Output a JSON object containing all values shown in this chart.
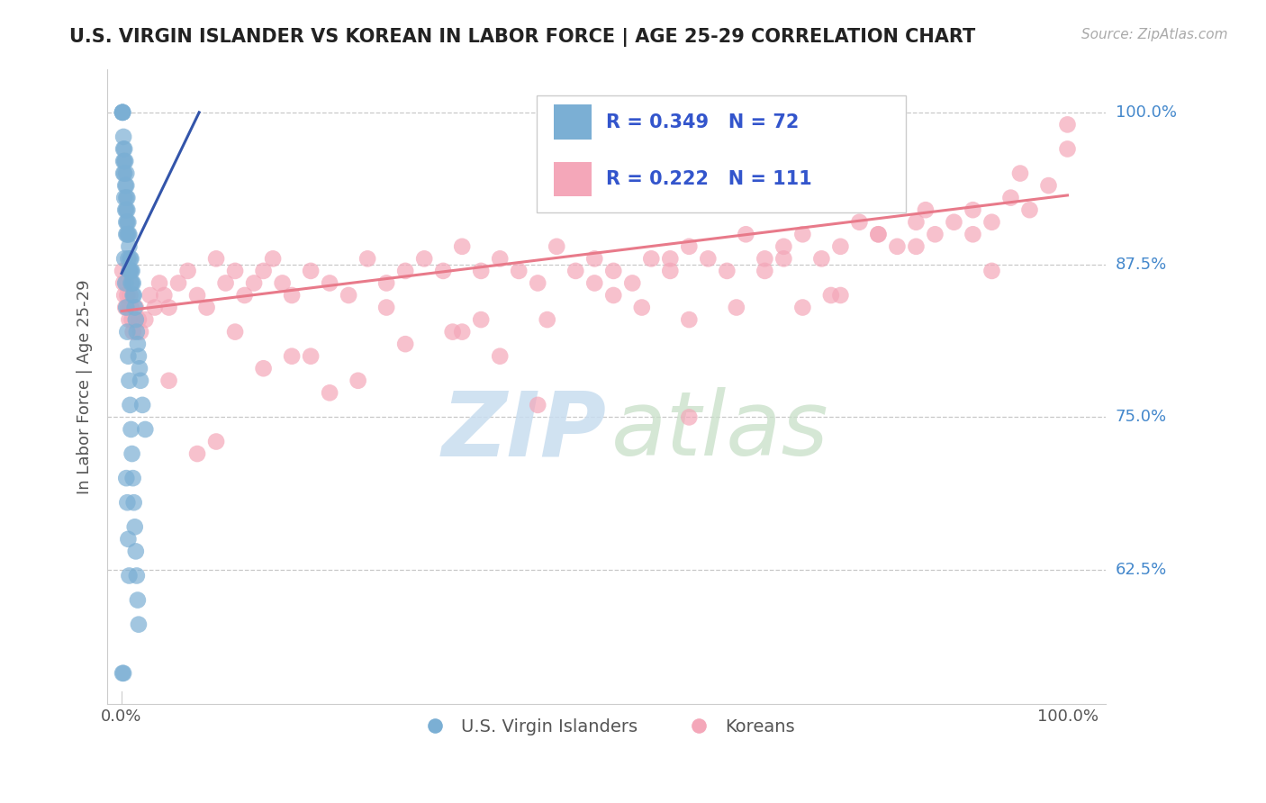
{
  "title": "U.S. VIRGIN ISLANDER VS KOREAN IN LABOR FORCE | AGE 25-29 CORRELATION CHART",
  "source": "Source: ZipAtlas.com",
  "ylabel": "In Labor Force | Age 25-29",
  "blue_color": "#7bafd4",
  "pink_color": "#f4a7b9",
  "trend_blue": "#3355aa",
  "trend_pink": "#e87a8a",
  "legend_text1": "R = 0.349   N = 72",
  "legend_text2": "R = 0.222   N = 111",
  "watermark_zip": "ZIP",
  "watermark_atlas": "atlas",
  "blue_x": [
    0.001,
    0.001,
    0.001,
    0.001,
    0.002,
    0.002,
    0.002,
    0.002,
    0.003,
    0.003,
    0.003,
    0.003,
    0.004,
    0.004,
    0.004,
    0.005,
    0.005,
    0.005,
    0.005,
    0.005,
    0.005,
    0.006,
    0.006,
    0.006,
    0.006,
    0.007,
    0.007,
    0.007,
    0.008,
    0.008,
    0.008,
    0.009,
    0.009,
    0.01,
    0.01,
    0.01,
    0.011,
    0.011,
    0.012,
    0.012,
    0.013,
    0.014,
    0.015,
    0.016,
    0.017,
    0.018,
    0.019,
    0.02,
    0.022,
    0.025,
    0.003,
    0.004,
    0.005,
    0.006,
    0.007,
    0.008,
    0.009,
    0.01,
    0.011,
    0.012,
    0.013,
    0.014,
    0.015,
    0.016,
    0.017,
    0.018,
    0.005,
    0.006,
    0.007,
    0.008,
    0.001,
    0.002
  ],
  "blue_y": [
    1.0,
    1.0,
    1.0,
    1.0,
    0.98,
    0.97,
    0.96,
    0.95,
    0.97,
    0.96,
    0.95,
    0.93,
    0.96,
    0.94,
    0.92,
    0.95,
    0.94,
    0.93,
    0.92,
    0.91,
    0.9,
    0.93,
    0.92,
    0.91,
    0.9,
    0.91,
    0.9,
    0.88,
    0.9,
    0.89,
    0.87,
    0.88,
    0.87,
    0.88,
    0.87,
    0.86,
    0.87,
    0.86,
    0.86,
    0.85,
    0.85,
    0.84,
    0.83,
    0.82,
    0.81,
    0.8,
    0.79,
    0.78,
    0.76,
    0.74,
    0.88,
    0.86,
    0.84,
    0.82,
    0.8,
    0.78,
    0.76,
    0.74,
    0.72,
    0.7,
    0.68,
    0.66,
    0.64,
    0.62,
    0.6,
    0.58,
    0.7,
    0.68,
    0.65,
    0.62,
    0.54,
    0.54
  ],
  "pink_x": [
    0.001,
    0.002,
    0.003,
    0.004,
    0.005,
    0.006,
    0.007,
    0.008,
    0.009,
    0.01,
    0.011,
    0.012,
    0.015,
    0.018,
    0.02,
    0.025,
    0.03,
    0.035,
    0.04,
    0.045,
    0.05,
    0.06,
    0.07,
    0.08,
    0.09,
    0.1,
    0.11,
    0.12,
    0.13,
    0.14,
    0.15,
    0.16,
    0.17,
    0.18,
    0.2,
    0.22,
    0.24,
    0.26,
    0.28,
    0.3,
    0.32,
    0.34,
    0.36,
    0.38,
    0.4,
    0.42,
    0.44,
    0.46,
    0.48,
    0.5,
    0.52,
    0.54,
    0.56,
    0.58,
    0.6,
    0.62,
    0.64,
    0.66,
    0.68,
    0.7,
    0.72,
    0.74,
    0.76,
    0.78,
    0.8,
    0.82,
    0.84,
    0.86,
    0.88,
    0.9,
    0.92,
    0.94,
    0.96,
    0.98,
    1.0,
    0.05,
    0.12,
    0.2,
    0.28,
    0.36,
    0.44,
    0.52,
    0.6,
    0.68,
    0.76,
    0.84,
    0.92,
    0.15,
    0.3,
    0.45,
    0.6,
    0.75,
    0.9,
    0.1,
    0.25,
    0.4,
    0.55,
    0.7,
    0.85,
    1.0,
    0.08,
    0.18,
    0.35,
    0.5,
    0.65,
    0.8,
    0.95,
    0.22,
    0.38,
    0.58,
    0.72
  ],
  "pink_y": [
    0.87,
    0.86,
    0.85,
    0.84,
    0.86,
    0.85,
    0.84,
    0.83,
    0.85,
    0.84,
    0.83,
    0.82,
    0.84,
    0.83,
    0.82,
    0.83,
    0.85,
    0.84,
    0.86,
    0.85,
    0.84,
    0.86,
    0.87,
    0.85,
    0.84,
    0.88,
    0.86,
    0.87,
    0.85,
    0.86,
    0.87,
    0.88,
    0.86,
    0.85,
    0.87,
    0.86,
    0.85,
    0.88,
    0.86,
    0.87,
    0.88,
    0.87,
    0.89,
    0.87,
    0.88,
    0.87,
    0.86,
    0.89,
    0.87,
    0.88,
    0.87,
    0.86,
    0.88,
    0.87,
    0.89,
    0.88,
    0.87,
    0.9,
    0.88,
    0.89,
    0.9,
    0.88,
    0.89,
    0.91,
    0.9,
    0.89,
    0.91,
    0.9,
    0.91,
    0.92,
    0.91,
    0.93,
    0.92,
    0.94,
    0.99,
    0.78,
    0.82,
    0.8,
    0.84,
    0.82,
    0.76,
    0.85,
    0.83,
    0.87,
    0.85,
    0.89,
    0.87,
    0.79,
    0.81,
    0.83,
    0.75,
    0.85,
    0.9,
    0.73,
    0.78,
    0.8,
    0.84,
    0.88,
    0.92,
    0.97,
    0.72,
    0.8,
    0.82,
    0.86,
    0.84,
    0.9,
    0.95,
    0.77,
    0.83,
    0.88,
    0.84
  ],
  "blue_trend_x": [
    0.0,
    0.082
  ],
  "blue_trend_y": [
    0.868,
    1.0
  ],
  "pink_trend_x": [
    0.0,
    1.0
  ],
  "pink_trend_y": [
    0.837,
    0.932
  ],
  "xlim": [
    -0.015,
    1.04
  ],
  "ylim": [
    0.515,
    1.035
  ],
  "yticks": [
    0.625,
    0.75,
    0.875,
    1.0
  ],
  "ytick_labels": [
    "62.5%",
    "75.0%",
    "87.5%",
    "100.0%"
  ]
}
